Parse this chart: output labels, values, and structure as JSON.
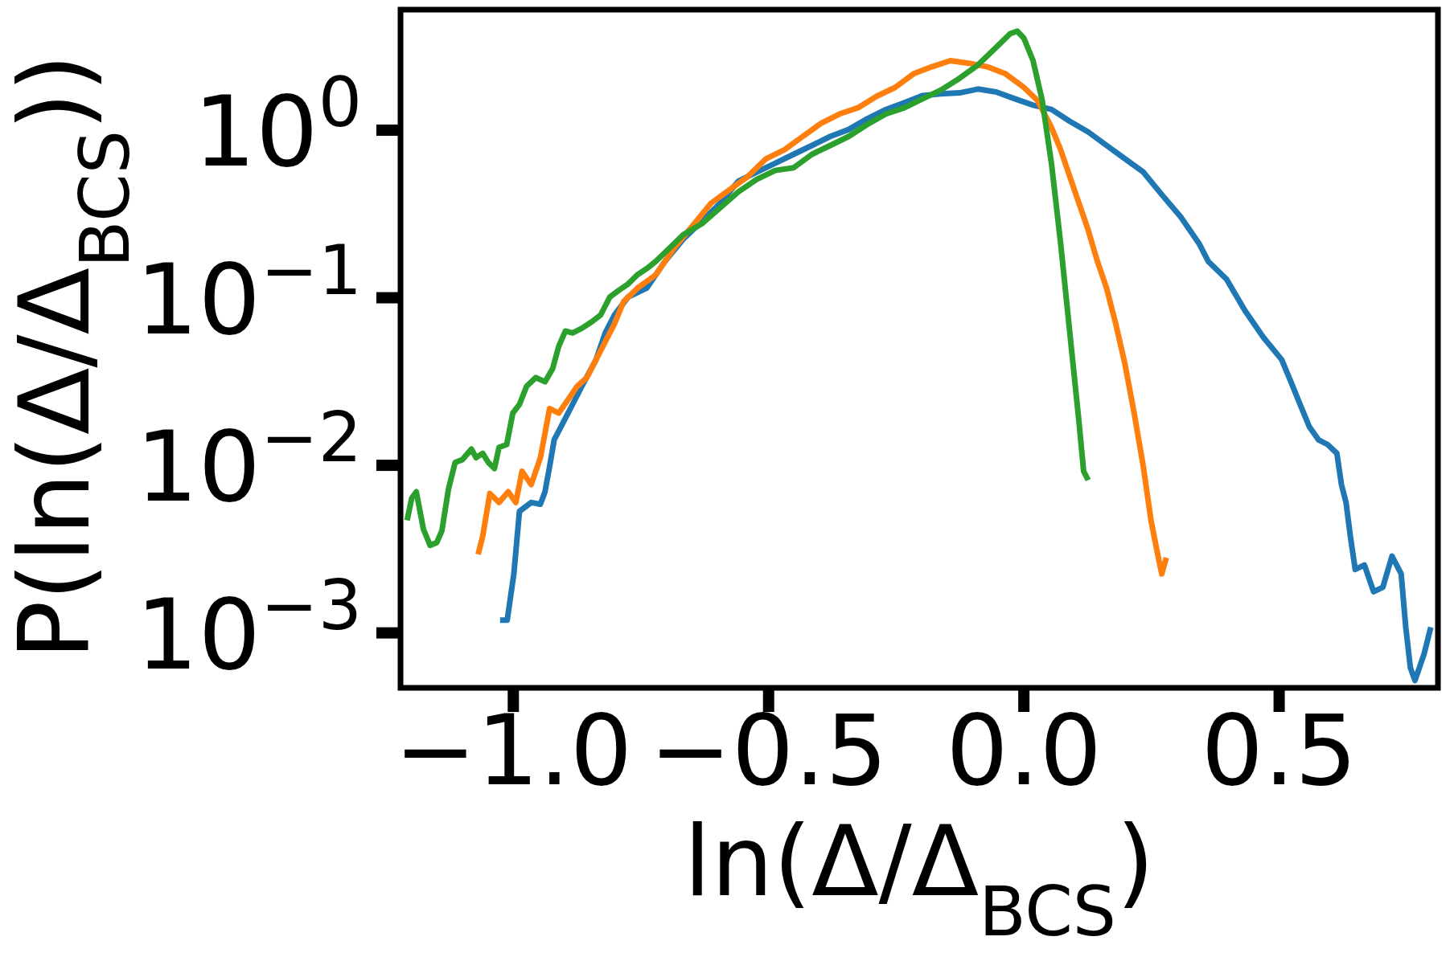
{
  "chart_data": {
    "type": "line",
    "xlabel": "ln(Δ/Δ$_{BCS}$)",
    "ylabel": "P(ln(Δ/Δ$_{BCS}$))",
    "log": "y",
    "grid": false,
    "marker": "none",
    "line_style": "solid",
    "xlim": [
      -1.221,
      0.811
    ],
    "ylim": [
      0.00047,
      5.24
    ],
    "xticks": [
      {
        "value": -1,
        "label": "−1.0"
      },
      {
        "value": -0.5,
        "label": "−0.5"
      },
      {
        "value": 0,
        "label": "0.0"
      },
      {
        "value": 0.5,
        "label": "0.5"
      }
    ],
    "yticks": [
      {
        "value": 0.001,
        "label": "10$^{−3}$"
      },
      {
        "value": 0.01,
        "label": "10$^{−2}$"
      },
      {
        "value": 0.1,
        "label": "10$^{−1}$"
      },
      {
        "value": 1,
        "label": "10$^{0}$"
      }
    ],
    "series": [
      {
        "color": "#1f77b4",
        "x": [
          -1.026,
          -1.012,
          -0.999,
          -0.988,
          -0.965,
          -0.947,
          -0.938,
          -0.929,
          -0.92,
          -0.902,
          -0.884,
          -0.866,
          -0.838,
          -0.82,
          -0.802,
          -0.775,
          -0.739,
          -0.703,
          -0.667,
          -0.631,
          -0.595,
          -0.559,
          -0.523,
          -0.487,
          -0.451,
          -0.415,
          -0.379,
          -0.343,
          -0.307,
          -0.27,
          -0.234,
          -0.198,
          -0.162,
          -0.126,
          -0.09,
          -0.054,
          -0.018,
          0.018,
          0.054,
          0.09,
          0.126,
          0.162,
          0.198,
          0.234,
          0.27,
          0.307,
          0.343,
          0.361,
          0.397,
          0.433,
          0.469,
          0.505,
          0.523,
          0.541,
          0.559,
          0.577,
          0.595,
          0.613,
          0.622,
          0.631,
          0.64,
          0.649,
          0.667,
          0.685,
          0.703,
          0.721,
          0.739,
          0.748,
          0.757,
          0.766,
          0.784,
          0.797
        ],
        "values": [
          0.00119,
          0.00119,
          0.00225,
          0.00531,
          0.006,
          0.00586,
          0.00695,
          0.0098,
          0.0142,
          0.0181,
          0.0231,
          0.0296,
          0.0427,
          0.0617,
          0.0789,
          0.101,
          0.114,
          0.165,
          0.224,
          0.286,
          0.366,
          0.497,
          0.562,
          0.635,
          0.718,
          0.811,
          0.918,
          1.01,
          1.17,
          1.33,
          1.46,
          1.61,
          1.65,
          1.67,
          1.76,
          1.69,
          1.54,
          1.41,
          1.33,
          1.13,
          0.976,
          0.811,
          0.675,
          0.562,
          0.413,
          0.304,
          0.211,
          0.165,
          0.129,
          0.0839,
          0.0581,
          0.0427,
          0.0315,
          0.0231,
          0.017,
          0.0142,
          0.0133,
          0.0118,
          0.00767,
          0.006,
          0.00367,
          0.00239,
          0.00254,
          0.00176,
          0.00187,
          0.00287,
          0.00225,
          0.00108,
          0.00062,
          0.00052,
          0.00075,
          0.00108
        ]
      },
      {
        "color": "#ff7f0e",
        "x": [
          -1.069,
          -1.06,
          -1.046,
          -1.028,
          -1.01,
          -0.995,
          -0.983,
          -0.965,
          -0.947,
          -0.929,
          -0.911,
          -0.893,
          -0.875,
          -0.856,
          -0.838,
          -0.82,
          -0.802,
          -0.784,
          -0.757,
          -0.721,
          -0.685,
          -0.649,
          -0.613,
          -0.577,
          -0.541,
          -0.505,
          -0.469,
          -0.433,
          -0.397,
          -0.361,
          -0.325,
          -0.289,
          -0.252,
          -0.216,
          -0.18,
          -0.144,
          -0.108,
          -0.072,
          -0.036,
          0,
          0.027,
          0.054,
          0.072,
          0.09,
          0.108,
          0.126,
          0.144,
          0.162,
          0.18,
          0.198,
          0.216,
          0.234,
          0.249,
          0.261,
          0.27,
          0.279
        ],
        "values": [
          0.00294,
          0.00377,
          0.00679,
          0.006,
          0.00695,
          0.006,
          0.00922,
          0.00767,
          0.0111,
          0.0218,
          0.0205,
          0.0246,
          0.0296,
          0.0334,
          0.0427,
          0.0546,
          0.0698,
          0.0948,
          0.114,
          0.137,
          0.198,
          0.269,
          0.366,
          0.44,
          0.528,
          0.675,
          0.764,
          0.918,
          1.1,
          1.25,
          1.36,
          1.59,
          1.8,
          2.17,
          2.39,
          2.6,
          2.51,
          2.39,
          2.17,
          1.8,
          1.5,
          1.04,
          0.764,
          0.528,
          0.366,
          0.253,
          0.165,
          0.114,
          0.0698,
          0.0402,
          0.0205,
          0.0098,
          0.0047,
          0.00306,
          0.00225,
          0.00281
        ]
      },
      {
        "color": "#2ca02c",
        "x": [
          -1.208,
          -1.199,
          -1.19,
          -1.176,
          -1.163,
          -1.15,
          -1.14,
          -1.127,
          -1.114,
          -1.1,
          -1.082,
          -1.073,
          -1.06,
          -1.049,
          -1.037,
          -1.028,
          -1.013,
          -1.001,
          -0.988,
          -0.974,
          -0.956,
          -0.938,
          -0.923,
          -0.911,
          -0.898,
          -0.884,
          -0.866,
          -0.847,
          -0.829,
          -0.811,
          -0.793,
          -0.775,
          -0.757,
          -0.739,
          -0.721,
          -0.694,
          -0.667,
          -0.631,
          -0.595,
          -0.559,
          -0.523,
          -0.487,
          -0.451,
          -0.415,
          -0.379,
          -0.343,
          -0.307,
          -0.27,
          -0.234,
          -0.198,
          -0.162,
          -0.126,
          -0.09,
          -0.054,
          -0.027,
          -0.013,
          0,
          0.018,
          0.036,
          0.054,
          0.072,
          0.09,
          0.108,
          0.117,
          0.126
        ],
        "values": [
          0.0047,
          0.00638,
          0.00695,
          0.00415,
          0.00333,
          0.00346,
          0.00406,
          0.00722,
          0.0104,
          0.0108,
          0.0125,
          0.0111,
          0.0118,
          0.0104,
          0.00957,
          0.0128,
          0.0133,
          0.0205,
          0.0231,
          0.0296,
          0.0334,
          0.0315,
          0.0378,
          0.0514,
          0.0633,
          0.0617,
          0.0657,
          0.0716,
          0.0789,
          0.101,
          0.111,
          0.121,
          0.137,
          0.149,
          0.165,
          0.198,
          0.238,
          0.276,
          0.344,
          0.429,
          0.509,
          0.575,
          0.597,
          0.718,
          0.811,
          0.918,
          1.08,
          1.25,
          1.36,
          1.54,
          1.74,
          2.04,
          2.45,
          3.13,
          3.76,
          3.9,
          3.54,
          2.6,
          1.5,
          0.635,
          0.211,
          0.0617,
          0.0181,
          0.00922,
          0.00816
        ]
      }
    ]
  }
}
